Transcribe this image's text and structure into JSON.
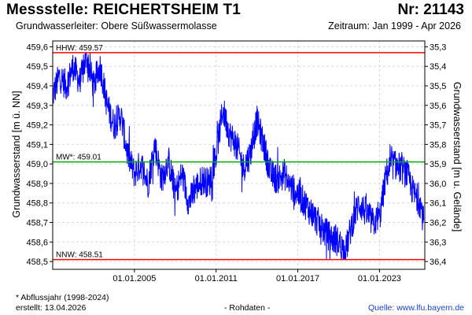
{
  "header": {
    "title": "Messstelle: REICHERTSHEIM T1",
    "number": "Nr: 21143",
    "aquifer": "Grundwasserleiter:   Obere Süßwassermolasse",
    "period": "Zeitraum: Jan 1999 - Apr 2026"
  },
  "footer": {
    "note": "* Abflussjahr (1998-2024)",
    "created": "erstellt:  13.04.2026",
    "raw": "- Rohdaten -",
    "source": "Quelle: www.lfu.bayern.de"
  },
  "chart_data": {
    "type": "line",
    "ylabel": "Grundwasserstand [m ü. NN]",
    "y2label": "Grundwasserstand [m u. Gelände]",
    "ylim": [
      458.46,
      459.63
    ],
    "y_ticks": [
      "458,5",
      "458,6",
      "458,7",
      "458,8",
      "458,9",
      "459,0",
      "459,1",
      "459,2",
      "459,3",
      "459,4",
      "459,5",
      "459,6"
    ],
    "y2_ticks": [
      "35,3",
      "35,4",
      "35,5",
      "35,6",
      "35,7",
      "35,8",
      "35,9",
      "36,0",
      "36,1",
      "36,2",
      "36,3",
      "36,4"
    ],
    "x_range": [
      "1999-01-01",
      "2026-04-30"
    ],
    "x_tick_labels": [
      "01.01.2005",
      "01.01.2011",
      "01.01.2017",
      "01.01.2023"
    ],
    "x_tick_dates": [
      "2005-01-01",
      "2011-01-01",
      "2017-01-01",
      "2023-01-01"
    ],
    "grid": true,
    "reference_lines": [
      {
        "label": "HHW: 459.57",
        "value": 459.57,
        "color": "#ff0000"
      },
      {
        "label": "MW*: 459.01",
        "value": 459.01,
        "color": "#00aa00"
      },
      {
        "label": "NNW: 458.51",
        "value": 458.51,
        "color": "#ff0000"
      }
    ],
    "series": [
      {
        "color": "#0000ff",
        "x": [
          "1999-01",
          "1999-07",
          "2000-01",
          "2000-07",
          "2001-01",
          "2001-07",
          "2002-01",
          "2002-07",
          "2003-01",
          "2003-07",
          "2004-01",
          "2004-07",
          "2005-01",
          "2005-07",
          "2006-01",
          "2006-07",
          "2007-01",
          "2007-07",
          "2008-01",
          "2008-07",
          "2009-01",
          "2009-07",
          "2010-01",
          "2010-07",
          "2011-01",
          "2011-07",
          "2012-01",
          "2012-07",
          "2013-01",
          "2013-07",
          "2014-01",
          "2014-07",
          "2015-01",
          "2015-07",
          "2016-01",
          "2016-07",
          "2017-01",
          "2017-07",
          "2018-01",
          "2018-07",
          "2019-01",
          "2019-07",
          "2020-01",
          "2020-07",
          "2021-01",
          "2021-07",
          "2022-01",
          "2022-07",
          "2023-01",
          "2023-07",
          "2024-01",
          "2024-07",
          "2025-01",
          "2025-07",
          "2026-01",
          "2026-04"
        ],
        "y": [
          459.35,
          459.45,
          459.4,
          459.5,
          459.42,
          459.55,
          459.4,
          459.5,
          459.3,
          459.2,
          459.25,
          459.05,
          458.95,
          459.0,
          458.9,
          459.1,
          458.92,
          459.02,
          458.85,
          458.95,
          458.8,
          458.88,
          458.92,
          458.9,
          459.05,
          459.28,
          459.15,
          459.1,
          458.98,
          459.05,
          459.22,
          459.1,
          458.95,
          458.92,
          458.95,
          458.88,
          458.85,
          458.8,
          458.75,
          458.7,
          458.65,
          458.62,
          458.6,
          458.55,
          458.7,
          458.8,
          458.75,
          458.7,
          458.72,
          458.95,
          459.0,
          458.98,
          458.95,
          458.85,
          458.8,
          458.7
        ]
      }
    ]
  }
}
